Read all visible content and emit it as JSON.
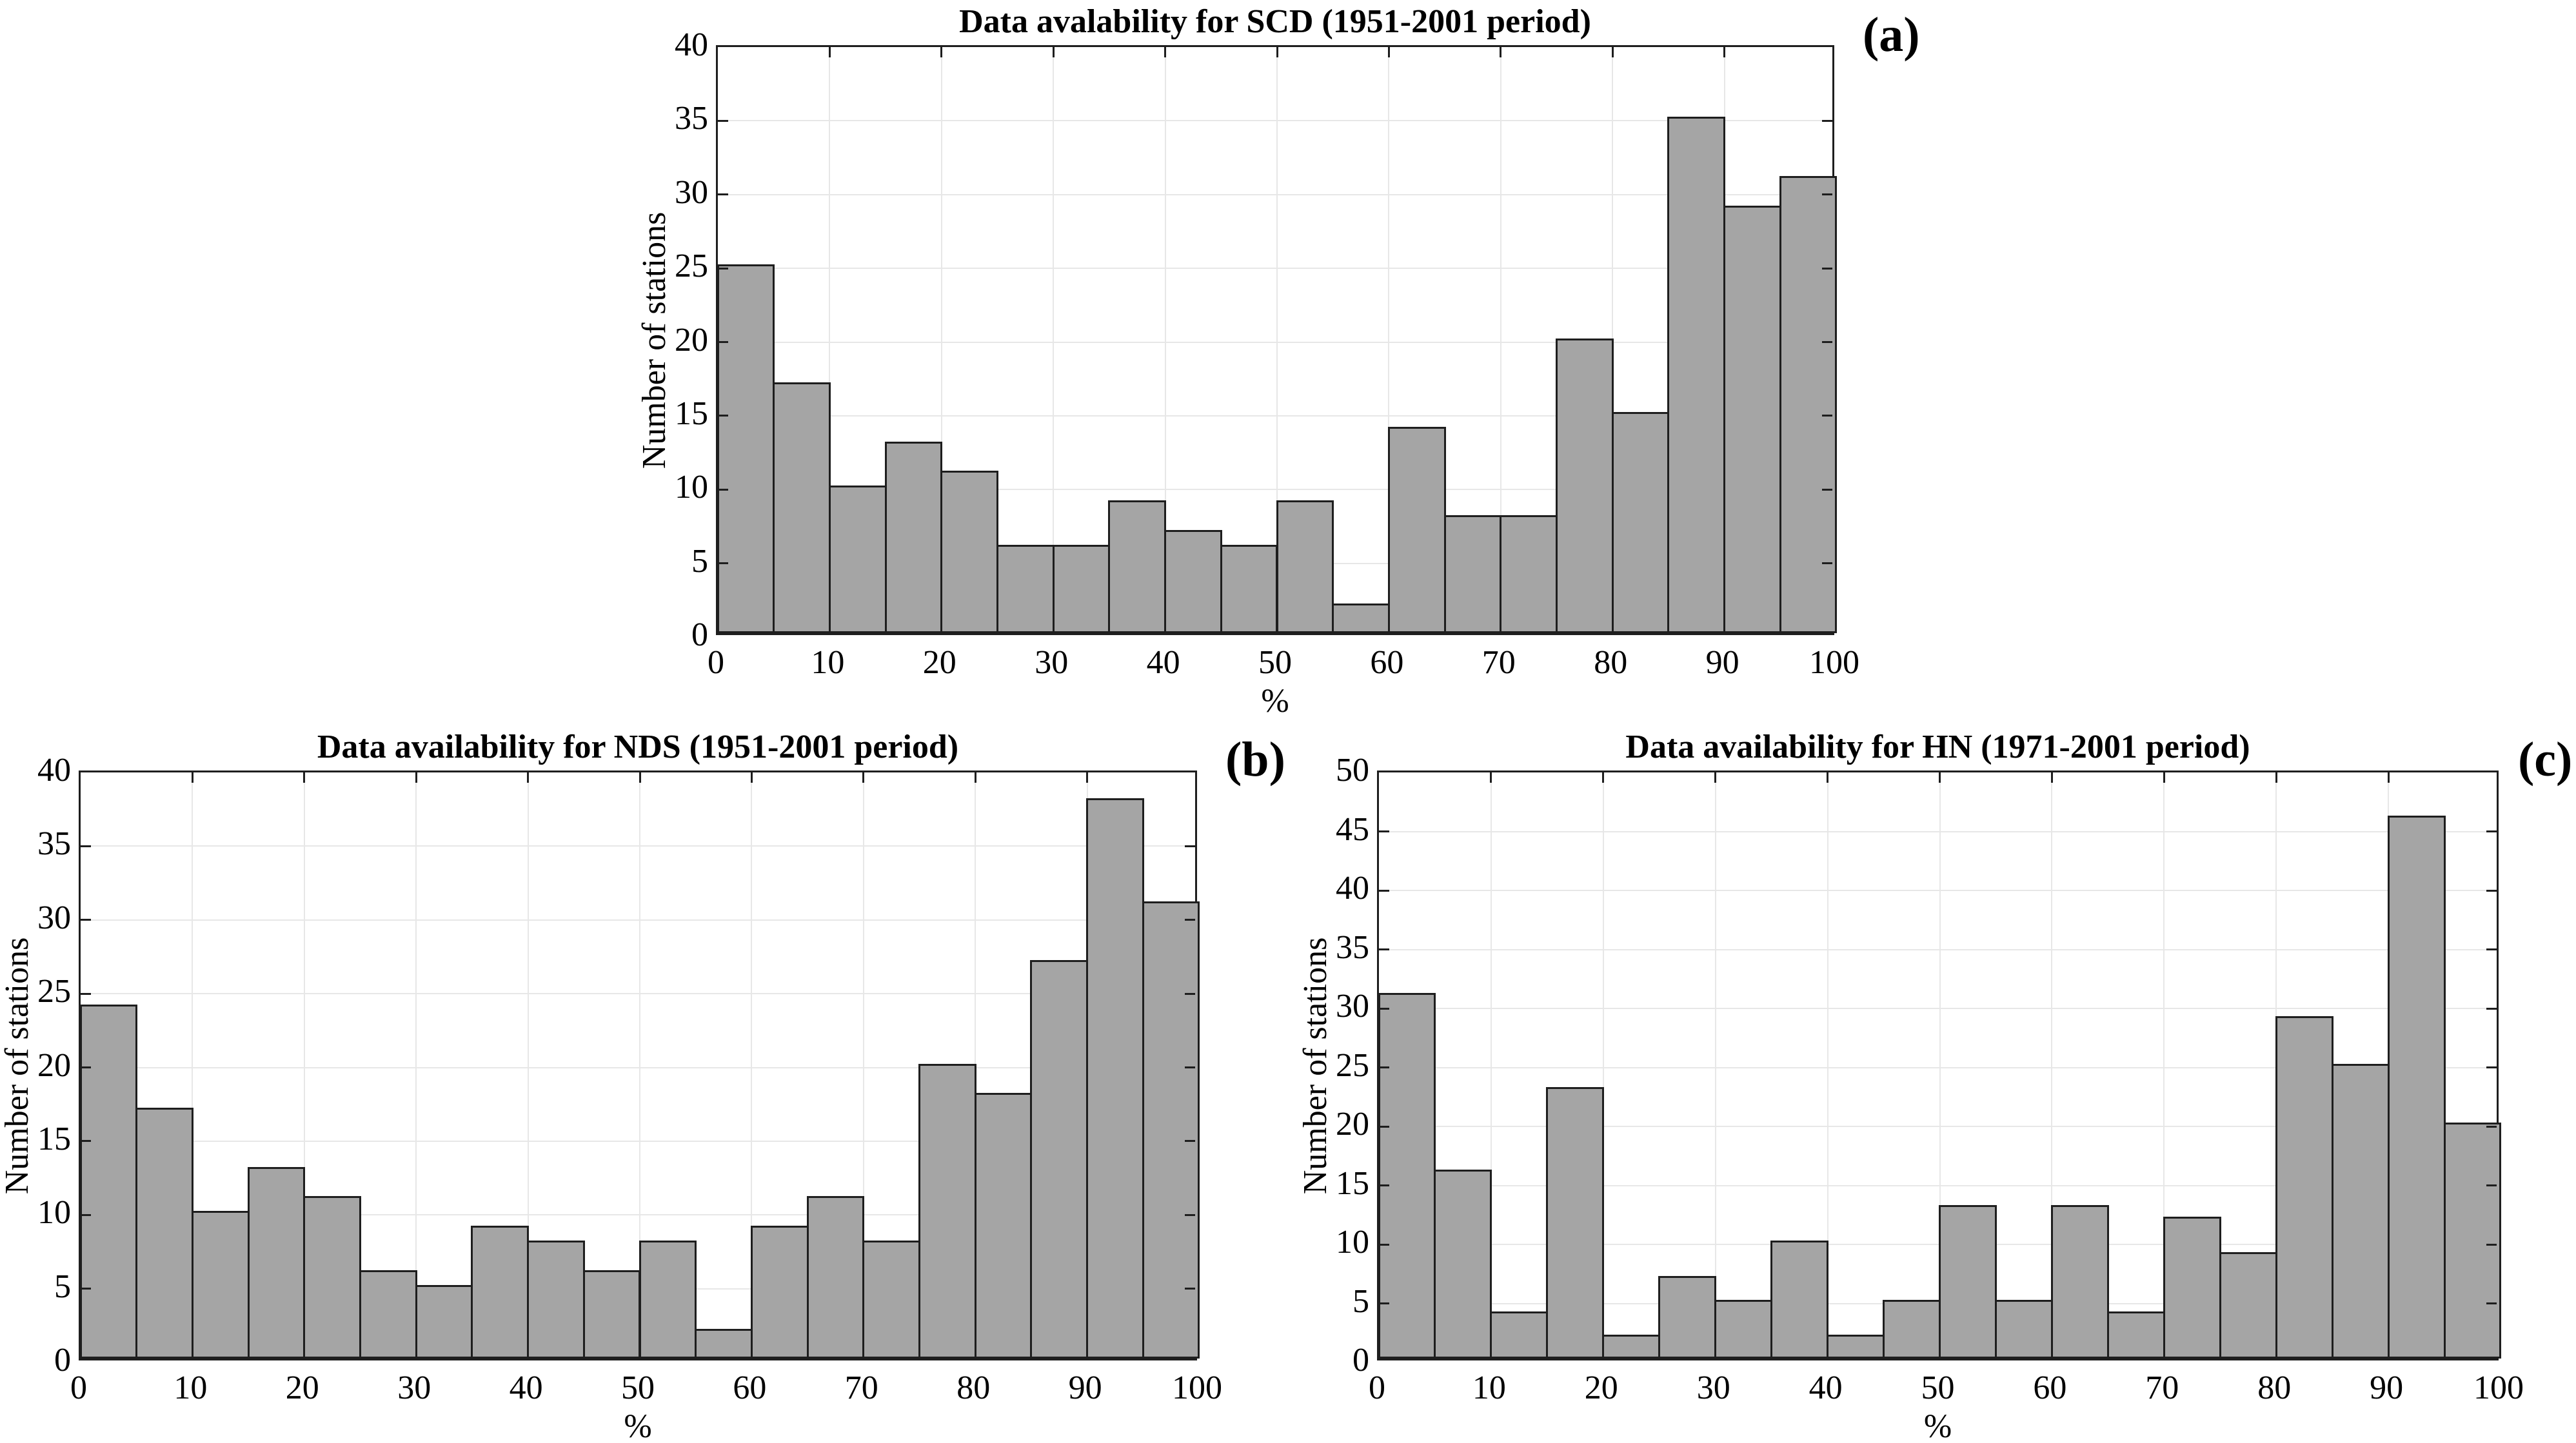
{
  "figure": {
    "background": "#ffffff",
    "colors": {
      "bar_fill": "#a5a5a5",
      "bar_edge": "#1e1e1e",
      "grid": "#e7e7e7",
      "axis": "#1e1e1e",
      "text": "#000000"
    }
  },
  "chart_data": [
    {
      "type": "bar",
      "panel_label": "(a)",
      "title": "Data avalability for SCD (1951-2001 period)",
      "xlabel": "%",
      "ylabel": "Number of stations",
      "bin_width": 5,
      "categories": [
        "0-5",
        "5-10",
        "10-15",
        "15-20",
        "20-25",
        "25-30",
        "30-35",
        "35-40",
        "40-45",
        "45-50",
        "50-55",
        "55-60",
        "60-65",
        "65-70",
        "70-75",
        "75-80",
        "80-85",
        "85-90",
        "90-95",
        "95-100"
      ],
      "values": [
        25,
        17,
        10,
        13,
        11,
        6,
        6,
        9,
        7,
        6,
        9,
        2,
        14,
        8,
        8,
        20,
        15,
        35,
        29,
        31
      ],
      "xlim": [
        0,
        100
      ],
      "ylim": [
        0,
        40
      ],
      "xticks": [
        0,
        10,
        20,
        30,
        40,
        50,
        60,
        70,
        80,
        90,
        100
      ],
      "yticks": [
        0,
        5,
        10,
        15,
        20,
        25,
        30,
        35,
        40
      ],
      "grid": true,
      "legend": "none"
    },
    {
      "type": "bar",
      "panel_label": "(b)",
      "title": "Data availability for NDS (1951-2001 period)",
      "xlabel": "%",
      "ylabel": "Number of stations",
      "bin_width": 5,
      "categories": [
        "0-5",
        "5-10",
        "10-15",
        "15-20",
        "20-25",
        "25-30",
        "30-35",
        "35-40",
        "40-45",
        "45-50",
        "50-55",
        "55-60",
        "60-65",
        "65-70",
        "70-75",
        "75-80",
        "80-85",
        "85-90",
        "90-95",
        "95-100"
      ],
      "values": [
        24,
        17,
        10,
        13,
        11,
        6,
        5,
        9,
        8,
        6,
        8,
        2,
        9,
        11,
        8,
        20,
        18,
        27,
        38,
        31
      ],
      "xlim": [
        0,
        100
      ],
      "ylim": [
        0,
        40
      ],
      "xticks": [
        0,
        10,
        20,
        30,
        40,
        50,
        60,
        70,
        80,
        90,
        100
      ],
      "yticks": [
        0,
        5,
        10,
        15,
        20,
        25,
        30,
        35,
        40
      ],
      "grid": true,
      "legend": "none"
    },
    {
      "type": "bar",
      "panel_label": "(c)",
      "title": "Data availability for HN (1971-2001 period)",
      "xlabel": "%",
      "ylabel": "Number of stations",
      "bin_width": 5,
      "categories": [
        "0-5",
        "5-10",
        "10-15",
        "15-20",
        "20-25",
        "25-30",
        "30-35",
        "35-40",
        "40-45",
        "45-50",
        "50-55",
        "55-60",
        "60-65",
        "65-70",
        "70-75",
        "75-80",
        "80-85",
        "85-90",
        "90-95",
        "95-100"
      ],
      "values": [
        31,
        16,
        4,
        23,
        2,
        7,
        5,
        10,
        2,
        5,
        13,
        5,
        13,
        4,
        12,
        9,
        29,
        25,
        46,
        20
      ],
      "xlim": [
        0,
        100
      ],
      "ylim": [
        0,
        50
      ],
      "xticks": [
        0,
        10,
        20,
        30,
        40,
        50,
        60,
        70,
        80,
        90,
        100
      ],
      "yticks": [
        0,
        5,
        10,
        15,
        20,
        25,
        30,
        35,
        40,
        45,
        50
      ],
      "grid": true,
      "legend": "none"
    }
  ]
}
